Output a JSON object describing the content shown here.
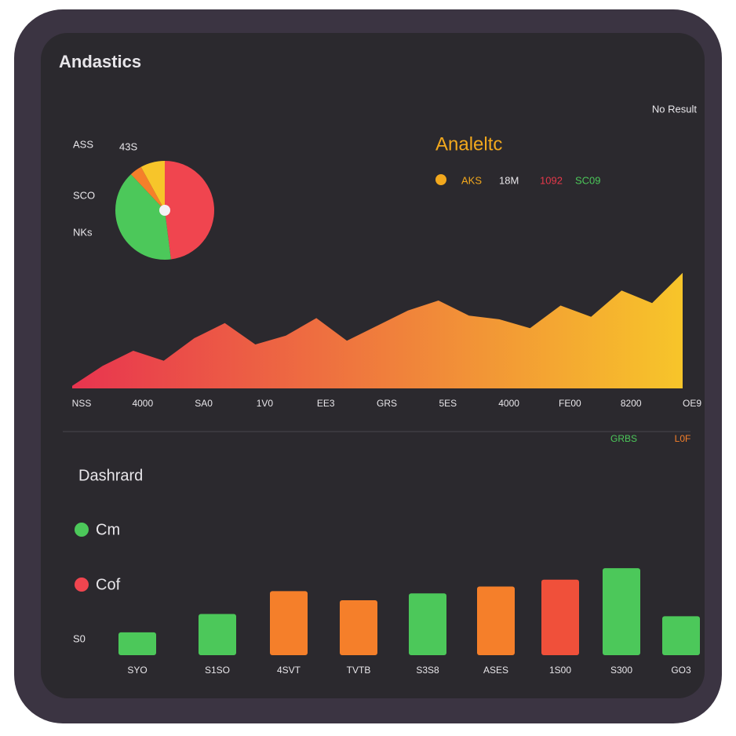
{
  "header": {
    "title": "Andastics",
    "status": "No Result"
  },
  "chart_data": [
    {
      "type": "pie",
      "labels": [
        "ASS",
        "43S",
        "SCO",
        "NKs"
      ],
      "values": [
        48,
        40,
        4,
        8
      ],
      "colors": [
        "#f0454f",
        "#4cc85a",
        "#f57f2a",
        "#f7c52a"
      ]
    },
    {
      "type": "area",
      "title": "Analeltc",
      "legend": [
        {
          "name": "AKS",
          "color": "#f2a81d"
        },
        {
          "name": "18M",
          "color": "#e8e6ea"
        },
        {
          "name": "1092",
          "color": "#e5384a"
        },
        {
          "name": "SC09",
          "color": "#4cc85a"
        }
      ],
      "categories": [
        "NSS",
        null,
        "4000",
        null,
        "SA0",
        null,
        "1V0",
        null,
        "EE3",
        null,
        "GRS",
        null,
        "5ES",
        null,
        "4000",
        null,
        "FE00",
        null,
        "8200",
        null,
        "OE9"
      ],
      "values": [
        2,
        18,
        30,
        22,
        40,
        52,
        35,
        42,
        56,
        38,
        50,
        62,
        70,
        58,
        55,
        48,
        66,
        57,
        78,
        68,
        92
      ],
      "ylim": [
        0,
        100
      ],
      "colors": [
        "#e8344f",
        "#f7c52a"
      ]
    },
    {
      "type": "bar",
      "title": "Dashrard",
      "series_labels": [
        {
          "name": "GRBS",
          "color": "#4cc85a"
        },
        {
          "name": "L0F",
          "color": "#f57f2a"
        }
      ],
      "legend": [
        {
          "name": "Cm",
          "color": "#4cc85a"
        },
        {
          "name": "Cof",
          "color": "#f0454f"
        }
      ],
      "categories": [
        "SYO",
        "S1SO",
        "4SVT",
        "TVTB",
        "S3S8",
        "ASES",
        "1S00",
        "S300",
        "GO3"
      ],
      "values": [
        10,
        18,
        28,
        24,
        27,
        30,
        33,
        38,
        17
      ],
      "colors": [
        "#4cc85a",
        "#4cc85a",
        "#f57f2a",
        "#f57f2a",
        "#4cc85a",
        "#f57f2a",
        "#f0503a",
        "#4cc85a",
        "#4cc85a"
      ],
      "ylim": [
        0,
        60
      ],
      "yticks": [
        {
          "value": 0,
          "label": "S0"
        }
      ]
    }
  ]
}
